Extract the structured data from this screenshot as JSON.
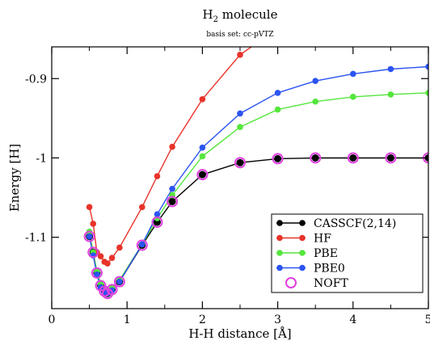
{
  "chart_data": {
    "type": "line",
    "title_main": "H",
    "title_sub_script": "2",
    "title_rest": " molecule",
    "subtitle": "basis set: cc-pVTZ",
    "xlabel": "H-H distance [Å]",
    "ylabel": "Energy [H]",
    "xlim": [
      0,
      5
    ],
    "ylim": [
      -1.19,
      -0.86
    ],
    "x_ticks": [
      0,
      1,
      2,
      3,
      4,
      5
    ],
    "x_tick_labels": [
      "0",
      "1",
      "2",
      "3",
      "4",
      "5"
    ],
    "y_ticks": [
      -1.1,
      -1.0,
      -0.9
    ],
    "y_tick_labels": [
      "-1.1",
      "-1",
      "-0.9"
    ],
    "grid": false,
    "legend_position": "bottom-right",
    "series": [
      {
        "name": "CASSCF(2,14)",
        "color": "#000000",
        "marker": "filled-circle",
        "x": [
          0.5,
          0.55,
          0.6,
          0.65,
          0.7,
          0.74,
          0.8,
          0.9,
          1.2,
          1.4,
          1.6,
          2.0,
          2.5,
          3.0,
          3.5,
          4.0,
          4.5,
          5.0
        ],
        "y": [
          -1.099,
          -1.119,
          -1.145,
          -1.161,
          -1.168,
          -1.171,
          -1.166,
          -1.156,
          -1.11,
          -1.081,
          -1.055,
          -1.021,
          -1.006,
          -1.001,
          -1.0,
          -1.0,
          -1.0,
          -1.0
        ]
      },
      {
        "name": "HF",
        "color": "#e8332a",
        "marker": "filled-circle",
        "x": [
          0.5,
          0.55,
          0.6,
          0.65,
          0.7,
          0.74,
          0.8,
          0.9,
          1.2,
          1.4,
          1.6,
          2.0,
          2.5,
          2.8
        ],
        "y": [
          -1.062,
          -1.083,
          -1.119,
          -1.124,
          -1.131,
          -1.133,
          -1.126,
          -1.113,
          -1.062,
          -1.023,
          -0.986,
          -0.926,
          -0.87,
          -0.85
        ]
      },
      {
        "name": "PBE",
        "color": "#55e63c",
        "marker": "filled-circle",
        "x": [
          0.5,
          0.55,
          0.6,
          0.65,
          0.7,
          0.74,
          0.8,
          0.9,
          1.2,
          1.4,
          1.6,
          2.0,
          2.5,
          3.0,
          3.5,
          4.0,
          4.5,
          5.0
        ],
        "y": [
          -1.093,
          -1.119,
          -1.143,
          -1.159,
          -1.166,
          -1.168,
          -1.164,
          -1.154,
          -1.109,
          -1.076,
          -1.047,
          -0.998,
          -0.961,
          -0.939,
          -0.929,
          -0.923,
          -0.92,
          -0.918
        ]
      },
      {
        "name": "PBE0",
        "color": "#2b54f0",
        "marker": "filled-circle",
        "x": [
          0.5,
          0.55,
          0.6,
          0.65,
          0.7,
          0.74,
          0.8,
          0.9,
          1.2,
          1.4,
          1.6,
          2.0,
          2.5,
          3.0,
          3.5,
          4.0,
          4.5,
          5.0
        ],
        "y": [
          -1.099,
          -1.123,
          -1.147,
          -1.163,
          -1.169,
          -1.171,
          -1.167,
          -1.156,
          -1.109,
          -1.071,
          -1.039,
          -0.987,
          -0.944,
          -0.918,
          -0.903,
          -0.894,
          -0.888,
          -0.885
        ]
      },
      {
        "name": "NOFT",
        "color": "#e040e0",
        "marker": "open-circle",
        "x": [
          0.5,
          0.55,
          0.6,
          0.65,
          0.7,
          0.74,
          0.8,
          0.9,
          1.2,
          1.4,
          1.6,
          2.0,
          2.5,
          3.0,
          3.5,
          4.0,
          4.5,
          5.0
        ],
        "y": [
          -1.099,
          -1.119,
          -1.145,
          -1.161,
          -1.168,
          -1.171,
          -1.166,
          -1.156,
          -1.11,
          -1.081,
          -1.055,
          -1.021,
          -1.006,
          -1.001,
          -1.0,
          -1.0,
          -1.0,
          -1.0
        ]
      }
    ]
  }
}
